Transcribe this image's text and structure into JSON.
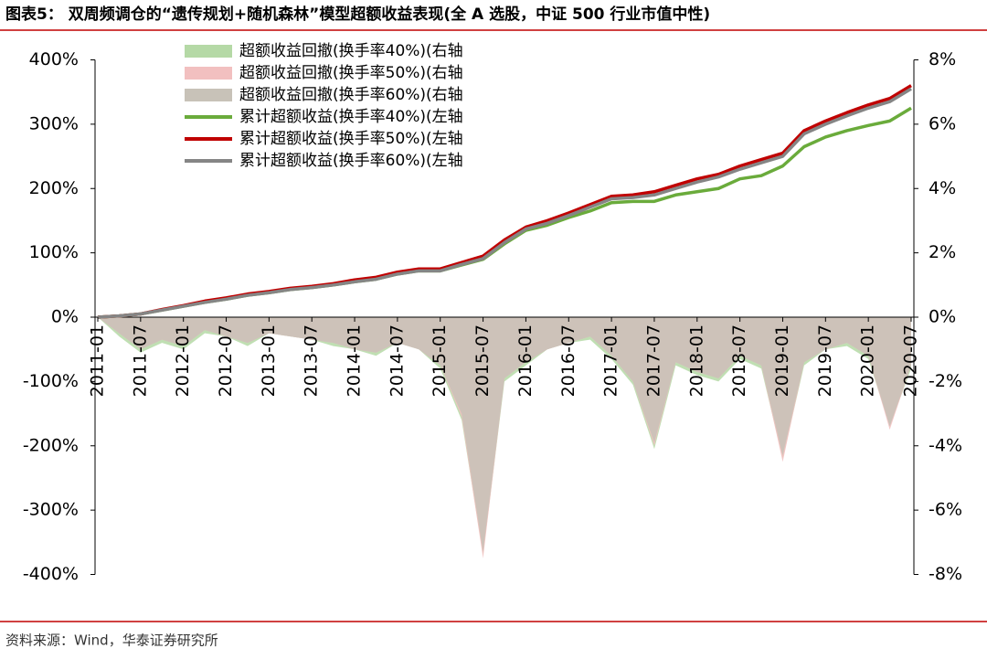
{
  "chart_data": {
    "type": "line",
    "title": "图表5：  双周频调仓的“遗传规划+随机森林”模型超额收益表现(全 A 选股，中证 500 行业市值中性)",
    "source": "资料来源：Wind，华泰证券研究所",
    "categories": [
      "2011-01",
      null,
      "2011-07",
      null,
      "2012-01",
      null,
      "2012-07",
      null,
      "2013-01",
      null,
      "2013-07",
      null,
      "2014-01",
      null,
      "2014-07",
      null,
      "2015-01",
      null,
      "2015-07",
      null,
      "2016-01",
      null,
      "2016-07",
      null,
      "2017-01",
      null,
      "2017-07",
      null,
      "2018-01",
      null,
      "2018-07",
      null,
      "2019-01",
      null,
      "2019-07",
      null,
      "2020-01",
      null,
      "2020-07"
    ],
    "ylim": [
      -400,
      400
    ],
    "yticks": [
      {
        "value": -400,
        "label": "-400%"
      },
      {
        "value": -300,
        "label": "-300%"
      },
      {
        "value": -200,
        "label": "-200%"
      },
      {
        "value": -100,
        "label": "-100%"
      },
      {
        "value": 0,
        "label": "0%"
      },
      {
        "value": 100,
        "label": "100%"
      },
      {
        "value": 200,
        "label": "200%"
      },
      {
        "value": 300,
        "label": "300%"
      },
      {
        "value": 400,
        "label": "400%"
      }
    ],
    "y2lim": [
      -8,
      8
    ],
    "y2ticks": [
      {
        "value": -8,
        "label": "-8%"
      },
      {
        "value": -6,
        "label": "-6%"
      },
      {
        "value": -4,
        "label": "-4%"
      },
      {
        "value": -2,
        "label": "-2%"
      },
      {
        "value": 0,
        "label": "0%"
      },
      {
        "value": 2,
        "label": "2%"
      },
      {
        "value": 4,
        "label": "4%"
      },
      {
        "value": 6,
        "label": "6%"
      },
      {
        "value": 8,
        "label": "8%"
      }
    ],
    "series": [
      {
        "name": "超额收益回撤(换手率40%)(右轴",
        "type": "area",
        "axis": "y2",
        "color": "#b5d9a6",
        "values": [
          0,
          -0.6,
          -1.1,
          -0.8,
          -1,
          -0.5,
          -0.6,
          -0.9,
          -0.5,
          -0.6,
          -0.7,
          -0.9,
          -1,
          -1.2,
          -0.8,
          -1,
          -1.6,
          -3.2,
          -7.4,
          -2,
          -1.5,
          -1,
          -0.8,
          -0.7,
          -1.3,
          -2.1,
          -4.1,
          -1.5,
          -1.8,
          -2,
          -1.3,
          -1.6,
          -4.4,
          -1.5,
          -1,
          -0.9,
          -1.3,
          -3.4,
          -1.6
        ]
      },
      {
        "name": "超额收益回撤(换手率50%)(右轴",
        "type": "area",
        "axis": "y2",
        "color": "#f2c0c0",
        "values": [
          0,
          -0.5,
          -1,
          -0.7,
          -0.9,
          -0.4,
          -0.6,
          -0.8,
          -0.5,
          -0.6,
          -0.7,
          -0.8,
          -1,
          -1.1,
          -0.8,
          -1,
          -1.5,
          -3.1,
          -7.5,
          -1.9,
          -1.4,
          -1,
          -0.8,
          -0.6,
          -1.2,
          -2,
          -4,
          -1.4,
          -1.7,
          -1.9,
          -1.2,
          -1.5,
          -4.5,
          -1.4,
          -1,
          -0.8,
          -1.2,
          -3.5,
          -1.5
        ]
      },
      {
        "name": "超额收益回撤(换手率60%)(右轴",
        "type": "area",
        "axis": "y2",
        "color": "#c8c2b8",
        "values": [
          0,
          -0.5,
          -1,
          -0.7,
          -0.9,
          -0.4,
          -0.6,
          -0.8,
          -0.5,
          -0.6,
          -0.7,
          -0.8,
          -1,
          -1.1,
          -0.8,
          -1,
          -1.5,
          -3,
          -7.3,
          -1.9,
          -1.4,
          -1,
          -0.8,
          -0.6,
          -1.2,
          -2,
          -3.9,
          -1.4,
          -1.7,
          -1.9,
          -1.2,
          -1.5,
          -4.3,
          -1.4,
          -1,
          -0.8,
          -1.2,
          -3.4,
          -1.5
        ]
      },
      {
        "name": "累计超额收益(换手率40%)(左轴",
        "type": "line",
        "color": "#6aab3b",
        "values": [
          0,
          2,
          5,
          11,
          17,
          23,
          28,
          34,
          38,
          43,
          46,
          50,
          55,
          59,
          67,
          72,
          72,
          81,
          90,
          114,
          135,
          143,
          155,
          165,
          178,
          180,
          180,
          190,
          195,
          200,
          215,
          220,
          235,
          265,
          280,
          290,
          298,
          305,
          325
        ]
      },
      {
        "name": "累计超额收益(换手率50%)(左轴",
        "type": "line",
        "color": "#c00000",
        "values": [
          0,
          2,
          5,
          12,
          18,
          25,
          30,
          36,
          40,
          45,
          48,
          52,
          58,
          62,
          70,
          75,
          75,
          85,
          95,
          120,
          140,
          150,
          162,
          175,
          188,
          190,
          195,
          205,
          215,
          222,
          235,
          245,
          255,
          290,
          305,
          318,
          330,
          340,
          360
        ]
      },
      {
        "name": "累计超额收益(换手率60%)(左轴",
        "type": "line",
        "color": "#858585",
        "values": [
          0,
          2,
          5,
          11,
          17,
          23,
          28,
          34,
          38,
          43,
          46,
          50,
          55,
          59,
          67,
          72,
          72,
          82,
          91,
          116,
          137,
          146,
          158,
          171,
          184,
          186,
          190,
          200,
          210,
          218,
          230,
          240,
          250,
          285,
          300,
          313,
          325,
          335,
          355
        ]
      }
    ]
  }
}
